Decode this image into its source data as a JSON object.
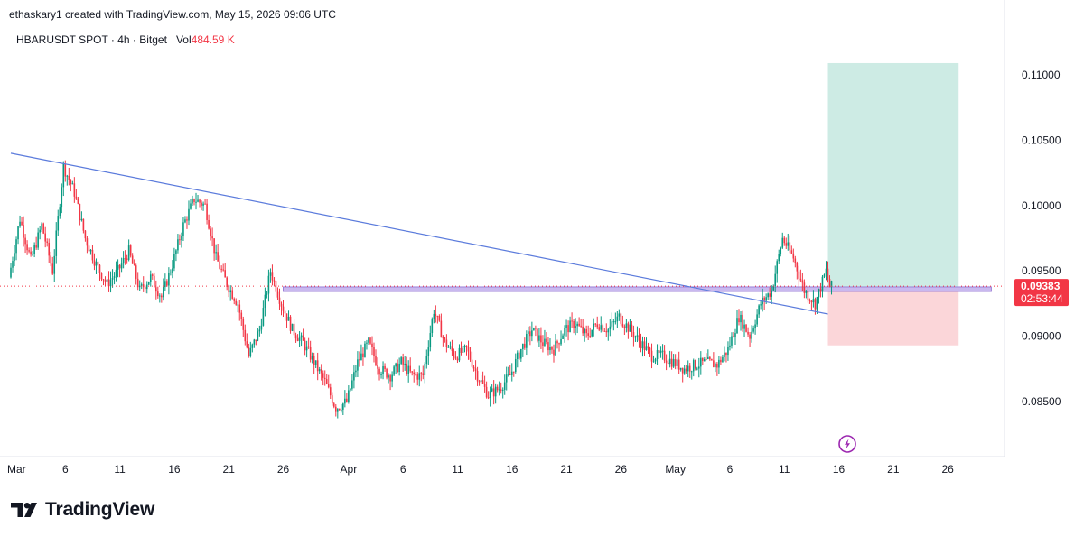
{
  "header": {
    "author_line": "ethaskary1 created with TradingView.com, May 15, 2026 09:06 UTC"
  },
  "legend": {
    "symbol": "HBARUSDT SPOT · 4h · Bitget",
    "vol_label": "Vol",
    "vol_value": "484.59 K"
  },
  "footer": {
    "brand": "TradingView",
    "logo_icon": "tradingview-logo-icon"
  },
  "colors": {
    "up": "#089981",
    "down": "#f23645",
    "trendline": "#5b7bdc",
    "zone_line": "#9c7fd6",
    "profit_zone": "#cdebe4",
    "loss_zone": "#fbd6d9",
    "price_badge": "#f23645",
    "lightning": "#9c27b0"
  },
  "chart_data": {
    "type": "candlestick",
    "symbol": "HBARUSDT",
    "interval": "4h",
    "exchange": "Bitget",
    "y_axis": {
      "ticks": [
        "0.11000",
        "0.10500",
        "0.10000",
        "0.09500",
        "0.09000",
        "0.08500"
      ],
      "ylim": [
        0.0825,
        0.1125
      ]
    },
    "x_axis": {
      "ticks": [
        "Mar",
        "6",
        "11",
        "16",
        "21",
        "26",
        "Apr",
        "6",
        "11",
        "16",
        "21",
        "26",
        "May",
        "6",
        "11",
        "16",
        "21",
        "26"
      ],
      "xlim": [
        "2026-03-01",
        "2026-05-30"
      ]
    },
    "last_price": "0.09383",
    "countdown": "02:53:44",
    "price_path": [
      [
        "2026-03-01",
        0.0945
      ],
      [
        "2026-03-02",
        0.099
      ],
      [
        "2026-03-03",
        0.0958
      ],
      [
        "2026-03-04",
        0.0985
      ],
      [
        "2026-03-05",
        0.095
      ],
      [
        "2026-03-06",
        0.103
      ],
      [
        "2026-03-07",
        0.101
      ],
      [
        "2026-03-08",
        0.0975
      ],
      [
        "2026-03-09",
        0.0955
      ],
      [
        "2026-03-10",
        0.094
      ],
      [
        "2026-03-11",
        0.095
      ],
      [
        "2026-03-12",
        0.0965
      ],
      [
        "2026-03-13",
        0.0935
      ],
      [
        "2026-03-14",
        0.0945
      ],
      [
        "2026-03-15",
        0.093
      ],
      [
        "2026-03-16",
        0.0955
      ],
      [
        "2026-03-17",
        0.0985
      ],
      [
        "2026-03-18",
        0.1005
      ],
      [
        "2026-03-19",
        0.1
      ],
      [
        "2026-03-20",
        0.096
      ],
      [
        "2026-03-21",
        0.094
      ],
      [
        "2026-03-22",
        0.0925
      ],
      [
        "2026-03-23",
        0.0885
      ],
      [
        "2026-03-24",
        0.0905
      ],
      [
        "2026-03-25",
        0.095
      ],
      [
        "2026-03-26",
        0.0925
      ],
      [
        "2026-03-27",
        0.0905
      ],
      [
        "2026-03-28",
        0.0895
      ],
      [
        "2026-03-29",
        0.088
      ],
      [
        "2026-03-30",
        0.0865
      ],
      [
        "2026-03-31",
        0.0845
      ],
      [
        "2026-04-01",
        0.085
      ],
      [
        "2026-04-02",
        0.088
      ],
      [
        "2026-04-03",
        0.0895
      ],
      [
        "2026-04-04",
        0.0875
      ],
      [
        "2026-04-05",
        0.087
      ],
      [
        "2026-04-06",
        0.088
      ],
      [
        "2026-04-07",
        0.087
      ],
      [
        "2026-04-08",
        0.087
      ],
      [
        "2026-04-09",
        0.092
      ],
      [
        "2026-04-10",
        0.0895
      ],
      [
        "2026-04-11",
        0.0885
      ],
      [
        "2026-04-12",
        0.089
      ],
      [
        "2026-04-13",
        0.087
      ],
      [
        "2026-04-14",
        0.0855
      ],
      [
        "2026-04-15",
        0.086
      ],
      [
        "2026-04-16",
        0.087
      ],
      [
        "2026-04-17",
        0.089
      ],
      [
        "2026-04-18",
        0.0905
      ],
      [
        "2026-04-19",
        0.0895
      ],
      [
        "2026-04-20",
        0.089
      ],
      [
        "2026-04-21",
        0.0905
      ],
      [
        "2026-04-22",
        0.091
      ],
      [
        "2026-04-23",
        0.09
      ],
      [
        "2026-04-24",
        0.091
      ],
      [
        "2026-04-25",
        0.0905
      ],
      [
        "2026-04-26",
        0.0915
      ],
      [
        "2026-04-27",
        0.0905
      ],
      [
        "2026-04-28",
        0.0895
      ],
      [
        "2026-04-29",
        0.0885
      ],
      [
        "2026-04-30",
        0.0885
      ],
      [
        "2026-05-01",
        0.088
      ],
      [
        "2026-05-02",
        0.0875
      ],
      [
        "2026-05-03",
        0.0878
      ],
      [
        "2026-05-04",
        0.088
      ],
      [
        "2026-05-05",
        0.0878
      ],
      [
        "2026-05-06",
        0.089
      ],
      [
        "2026-05-07",
        0.0915
      ],
      [
        "2026-05-08",
        0.09
      ],
      [
        "2026-05-09",
        0.0925
      ],
      [
        "2026-05-10",
        0.0935
      ],
      [
        "2026-05-11",
        0.0975
      ],
      [
        "2026-05-12",
        0.096
      ],
      [
        "2026-05-13",
        0.0935
      ],
      [
        "2026-05-14",
        0.0925
      ],
      [
        "2026-05-15",
        0.095
      ],
      [
        "2026-05-15T08",
        0.0938
      ]
    ],
    "trendline": {
      "start": [
        "2026-03-01",
        0.104
      ],
      "end": [
        "2026-05-15",
        0.0917
      ]
    },
    "horizontal_zone": {
      "from": "2026-03-26",
      "to": "2026-05-30",
      "value": 0.0936
    },
    "long_position": {
      "from": "2026-05-15",
      "to": "2026-05-27",
      "entry": 0.0936,
      "target": 0.1109,
      "stop": 0.0893
    }
  }
}
